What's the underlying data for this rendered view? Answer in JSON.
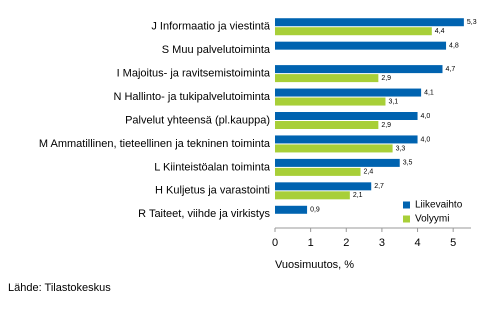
{
  "chart_data": {
    "type": "hbar",
    "categories": [
      "J Informaatio ja viestintä",
      "S Muu palvelutoiminta",
      "I Majoitus- ja ravitsemistoiminta",
      "N Hallinto- ja tukipalvelutoiminta",
      "Palvelut yhteensä (pl.kauppa)",
      "M Ammatillinen, tieteellinen ja tekninen toiminta",
      "L Kiinteistöalan toiminta",
      "H Kuljetus ja varastointi",
      "R Taiteet, viihde ja virkistys"
    ],
    "series": [
      {
        "name": "Liikevaihto",
        "color": "#0063b0",
        "values": [
          5.3,
          4.8,
          4.7,
          4.1,
          4.0,
          4.0,
          3.5,
          2.7,
          0.9
        ],
        "value_labels": [
          "5,3",
          "4,8",
          "4,7",
          "4,1",
          "4,0",
          "4,0",
          "3,5",
          "2,7",
          "0,9"
        ]
      },
      {
        "name": "Volyymi",
        "color": "#a8cf38",
        "values": [
          4.4,
          null,
          2.9,
          3.1,
          2.9,
          3.3,
          2.4,
          2.1,
          null
        ],
        "value_labels": [
          "4,4",
          null,
          "2,9",
          "3,1",
          "2,9",
          "3,3",
          "2,4",
          "2,1",
          null
        ]
      }
    ],
    "xlim": [
      0,
      5.5
    ],
    "xticks": [
      0,
      1,
      2,
      3,
      4,
      5
    ],
    "xlabel": "Vuosimuutos, %",
    "source": "Lähde: Tilastokeskus",
    "legend": "lower right"
  }
}
